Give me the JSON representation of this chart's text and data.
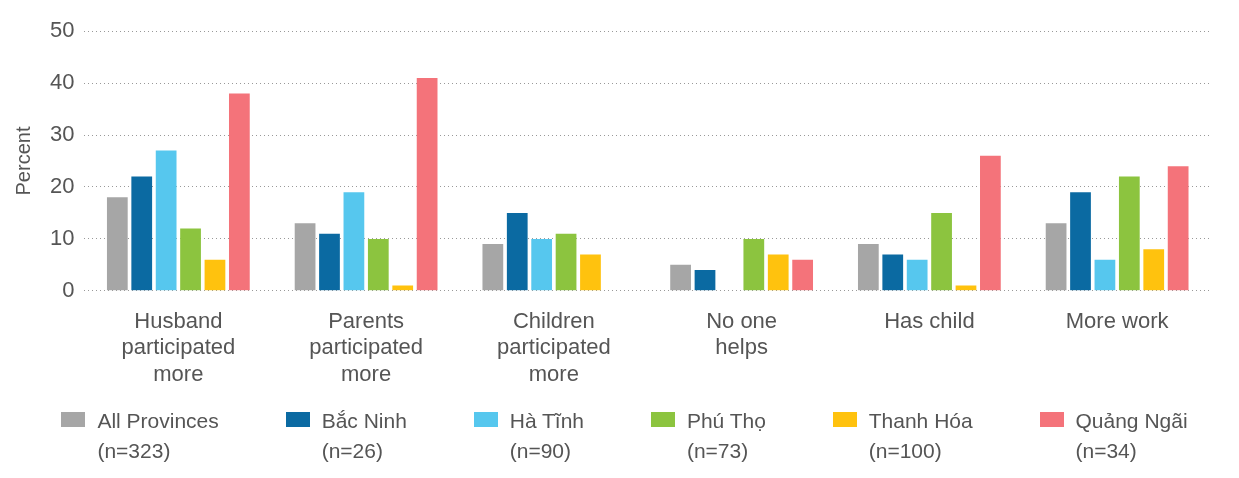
{
  "chart_data": {
    "type": "bar",
    "ylabel": "Percent",
    "categories": [
      "Husband\nparticipated\nmore",
      "Parents\nparticipated\nmore",
      "Children\nparticipated\nmore",
      "No one\nhelps",
      "Has child",
      "More work"
    ],
    "series": [
      {
        "name": "All Provinces\n(n=323)",
        "color": "#a6a6a6",
        "values": [
          18,
          13,
          9,
          5,
          9,
          13
        ]
      },
      {
        "name": "Bắc Ninh\n(n=26)",
        "color": "#0b6aa2",
        "values": [
          22,
          11,
          15,
          4,
          7,
          19
        ]
      },
      {
        "name": "Hà Tĩnh\n(n=90)",
        "color": "#56c7ee",
        "values": [
          27,
          19,
          10,
          null,
          6,
          6
        ]
      },
      {
        "name": "Phú Thọ\n(n=73)",
        "color": "#8cc43f",
        "values": [
          12,
          10,
          11,
          10,
          15,
          22
        ]
      },
      {
        "name": "Thanh Hóa\n(n=100)",
        "color": "#ffc20e",
        "values": [
          6,
          1,
          7,
          7,
          1,
          8
        ]
      },
      {
        "name": "Quảng Ngãi\n(n=34)",
        "color": "#f4737a",
        "values": [
          38,
          41,
          null,
          6,
          26,
          24
        ]
      }
    ],
    "ylim": [
      0,
      50
    ],
    "yticks": [
      0,
      10,
      20,
      30,
      40,
      50
    ],
    "grid": "y",
    "legend": "bottom"
  }
}
